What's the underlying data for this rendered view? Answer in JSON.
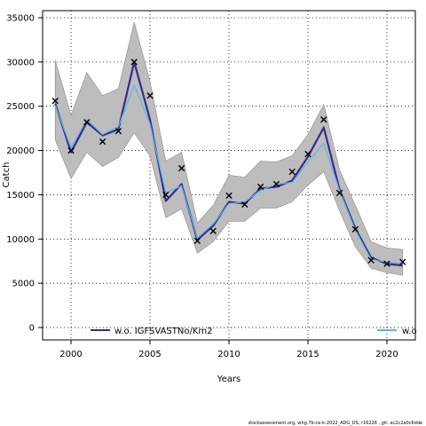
{
  "chart_data": {
    "type": "line",
    "xlabel": "Years",
    "ylabel": "Catch",
    "xlim": [
      1998.2,
      2021.8
    ],
    "ylim": [
      -1400,
      35800
    ],
    "xticks": [
      2000,
      2005,
      2010,
      2015,
      2020
    ],
    "yticks": [
      0,
      5000,
      10000,
      15000,
      20000,
      25000,
      30000,
      35000
    ],
    "grid": "dotted",
    "x": [
      1999,
      2000,
      2001,
      2002,
      2003,
      2004,
      2005,
      2006,
      2007,
      2008,
      2009,
      2010,
      2011,
      2012,
      2013,
      2014,
      2015,
      2016,
      2017,
      2018,
      2019,
      2020,
      2021
    ],
    "confidence_band": {
      "upper": [
        30200,
        24000,
        28800,
        26200,
        27000,
        34500,
        27800,
        18800,
        19800,
        11800,
        13800,
        17200,
        17000,
        18800,
        18700,
        19400,
        21800,
        25200,
        17800,
        13800,
        9700,
        9000,
        8800
      ],
      "lower": [
        21200,
        16800,
        19800,
        18200,
        19200,
        22000,
        19400,
        12400,
        13400,
        8400,
        9700,
        12000,
        12000,
        13500,
        13500,
        14200,
        16100,
        17600,
        13200,
        9100,
        6700,
        6200,
        5900
      ]
    },
    "series": [
      {
        "name": "w.o. IGFSVASTNo/Km2",
        "color": "#3a2a8c",
        "values": [
          25300,
          19800,
          23200,
          21700,
          22400,
          30000,
          23500,
          14300,
          16200,
          9900,
          11500,
          14200,
          14000,
          15700,
          15900,
          16600,
          19300,
          22600,
          15600,
          11200,
          7900,
          7200,
          7000
        ]
      },
      {
        "name": "",
        "color": "#58b6e8",
        "values": [
          25100,
          20300,
          23500,
          21800,
          22700,
          27400,
          23000,
          15200,
          16000,
          10100,
          11700,
          14000,
          14200,
          15500,
          16200,
          16400,
          18700,
          20800,
          15500,
          11000,
          7700,
          7400,
          7200
        ]
      }
    ],
    "observations": {
      "marker": "x",
      "values": [
        25600,
        20000,
        23200,
        21000,
        22200,
        30000,
        26200,
        15000,
        18000,
        9800,
        10900,
        14900,
        13900,
        15900,
        16200,
        17600,
        19600,
        23500,
        15200,
        11100,
        7600,
        7200,
        7400
      ]
    },
    "legend": [
      {
        "label": "w.o. IGFSVASTNo/Km2",
        "color": "#3a2a8c"
      },
      {
        "label": "w.o",
        "color": "#58b6e8"
      }
    ],
    "footnote": "stockassessment.org, whg.7b-ce-k-2022_ADG_DS, r16226 , git: ec2c2a0c6dde"
  },
  "colors": {
    "band": "#bdbdbd",
    "axis": "#000000",
    "marker": "#000000"
  }
}
